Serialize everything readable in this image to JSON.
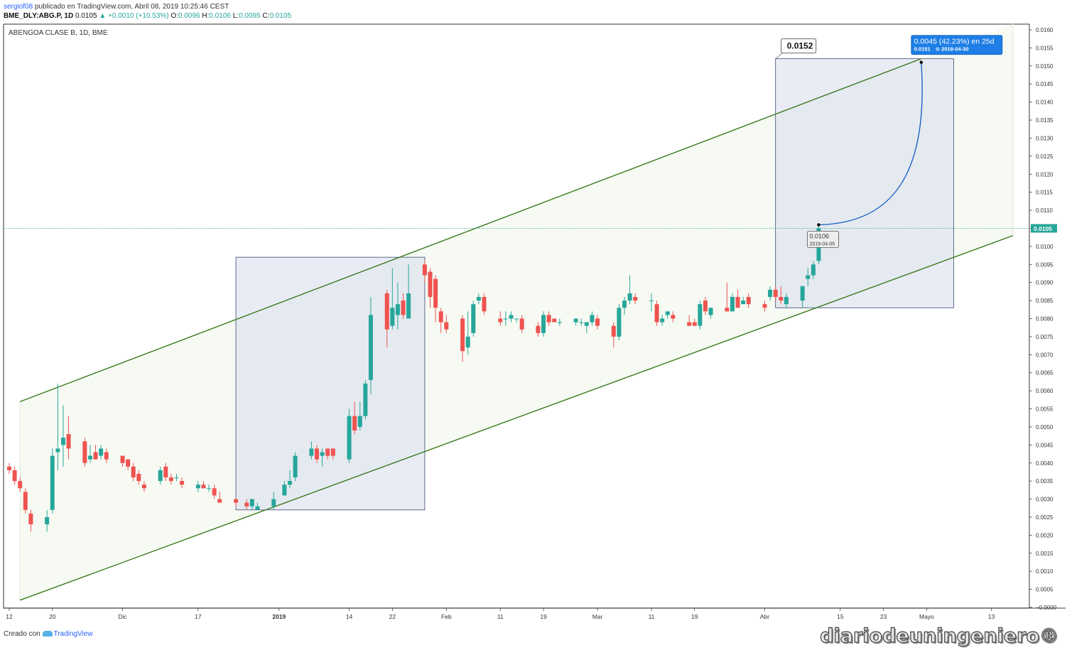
{
  "header": {
    "user": "sergiof08",
    "published": "publicado en TradingView.com, Abril 08, 2019 10:25:46 CEST",
    "symbol": "BME_DLY:ABG.P, 1D",
    "last": "0.0105",
    "change": "▲ +0.0010 (+10.53%)",
    "o_label": "O:",
    "o_value": "0.0096",
    "h_label": "H:",
    "h_value": "0.0106",
    "l_label": "L:",
    "l_value": "0.0095",
    "c_label": "C:",
    "c_value": "0.0105"
  },
  "footer": {
    "created_with": "Creado con",
    "brand": "TradingView",
    "watermark": "diariodeuningeniero®"
  },
  "chart_data": {
    "type": "candlestick",
    "title": "ABENGOA CLASE B, 1D, BME",
    "ylim": [
      0,
      0.016
    ],
    "y_ticks": [
      "0.0160",
      "0.0155",
      "0.0150",
      "0.0145",
      "0.0140",
      "0.0135",
      "0.0130",
      "0.0125",
      "0.0120",
      "0.0115",
      "0.0110",
      "0.0105",
      "0.0100",
      "0.0095",
      "0.0090",
      "0.0085",
      "0.0080",
      "0.0075",
      "0.0070",
      "0.0065",
      "0.0060",
      "0.0055",
      "0.0050",
      "0.0045",
      "0.0040",
      "0.0035",
      "0.0030",
      "0.0025",
      "0.0020",
      "0.0015",
      "0.0010",
      "0.0005",
      "−0.0000"
    ],
    "x_ticks": [
      "12",
      "20",
      "Dic",
      "17",
      "2019",
      "14",
      "22",
      "Feb",
      "11",
      "19",
      "Mar",
      "11",
      "19",
      "Abr",
      "15",
      "23",
      "Mayo",
      "13"
    ],
    "x_range": [
      "2018-11-12",
      "2019-05-17"
    ],
    "last_price": 0.0105,
    "last_price_label": "0.0105",
    "candles": [
      {
        "d": "2018-11-12",
        "o": 0.0039,
        "h": 0.004,
        "l": 0.0037,
        "c": 0.0038
      },
      {
        "d": "2018-11-13",
        "o": 0.0038,
        "h": 0.0039,
        "l": 0.0034,
        "c": 0.0035
      },
      {
        "d": "2018-11-14",
        "o": 0.0035,
        "h": 0.0036,
        "l": 0.0032,
        "c": 0.0033
      },
      {
        "d": "2018-11-15",
        "o": 0.0032,
        "h": 0.0033,
        "l": 0.0026,
        "c": 0.0027
      },
      {
        "d": "2018-11-16",
        "o": 0.0026,
        "h": 0.0027,
        "l": 0.0021,
        "c": 0.0023
      },
      {
        "d": "2018-11-19",
        "o": 0.0023,
        "h": 0.0027,
        "l": 0.0021,
        "c": 0.0025
      },
      {
        "d": "2018-11-20",
        "o": 0.0027,
        "h": 0.0044,
        "l": 0.0026,
        "c": 0.0042
      },
      {
        "d": "2018-11-21",
        "o": 0.0043,
        "h": 0.0062,
        "l": 0.0038,
        "c": 0.0044
      },
      {
        "d": "2018-11-22",
        "o": 0.0045,
        "h": 0.0056,
        "l": 0.0039,
        "c": 0.0047
      },
      {
        "d": "2018-11-23",
        "o": 0.0048,
        "h": 0.0053,
        "l": 0.0041,
        "c": 0.0044
      },
      {
        "d": "2018-11-26",
        "o": 0.0046,
        "h": 0.0047,
        "l": 0.0039,
        "c": 0.004
      },
      {
        "d": "2018-11-27",
        "o": 0.0041,
        "h": 0.0045,
        "l": 0.004,
        "c": 0.0042
      },
      {
        "d": "2018-11-28",
        "o": 0.0043,
        "h": 0.0045,
        "l": 0.0041,
        "c": 0.0041
      },
      {
        "d": "2018-11-29",
        "o": 0.0042,
        "h": 0.0045,
        "l": 0.0041,
        "c": 0.0044
      },
      {
        "d": "2018-11-30",
        "o": 0.0043,
        "h": 0.0044,
        "l": 0.004,
        "c": 0.0041
      },
      {
        "d": "2018-12-03",
        "o": 0.0042,
        "h": 0.0042,
        "l": 0.0039,
        "c": 0.004
      },
      {
        "d": "2018-12-04",
        "o": 0.0041,
        "h": 0.0041,
        "l": 0.0038,
        "c": 0.0039
      },
      {
        "d": "2018-12-05",
        "o": 0.0039,
        "h": 0.004,
        "l": 0.0035,
        "c": 0.0036
      },
      {
        "d": "2018-12-06",
        "o": 0.0037,
        "h": 0.0038,
        "l": 0.0034,
        "c": 0.0035
      },
      {
        "d": "2018-12-07",
        "o": 0.0034,
        "h": 0.0035,
        "l": 0.0032,
        "c": 0.0033
      },
      {
        "d": "2018-12-10",
        "o": 0.0035,
        "h": 0.0039,
        "l": 0.0034,
        "c": 0.0038
      },
      {
        "d": "2018-12-11",
        "o": 0.0039,
        "h": 0.004,
        "l": 0.0035,
        "c": 0.0036
      },
      {
        "d": "2018-12-12",
        "o": 0.0036,
        "h": 0.0037,
        "l": 0.0034,
        "c": 0.0035
      },
      {
        "d": "2018-12-13",
        "o": 0.0036,
        "h": 0.0037,
        "l": 0.0035,
        "c": 0.0036
      },
      {
        "d": "2018-12-14",
        "o": 0.0035,
        "h": 0.0036,
        "l": 0.0033,
        "c": 0.0034
      },
      {
        "d": "2018-12-17",
        "o": 0.0033,
        "h": 0.0035,
        "l": 0.0032,
        "c": 0.0034
      },
      {
        "d": "2018-12-18",
        "o": 0.0034,
        "h": 0.0035,
        "l": 0.0033,
        "c": 0.0033
      },
      {
        "d": "2018-12-19",
        "o": 0.0033,
        "h": 0.0034,
        "l": 0.0032,
        "c": 0.0033
      },
      {
        "d": "2018-12-20",
        "o": 0.0033,
        "h": 0.0034,
        "l": 0.003,
        "c": 0.0031
      },
      {
        "d": "2018-12-21",
        "o": 0.003,
        "h": 0.0032,
        "l": 0.0029,
        "c": 0.0029
      },
      {
        "d": "2018-12-24",
        "o": 0.003,
        "h": 0.003,
        "l": 0.0028,
        "c": 0.0029
      },
      {
        "d": "2018-12-26",
        "o": 0.0029,
        "h": 0.003,
        "l": 0.0027,
        "c": 0.0028
      },
      {
        "d": "2018-12-27",
        "o": 0.0028,
        "h": 0.003,
        "l": 0.0027,
        "c": 0.003
      },
      {
        "d": "2018-12-28",
        "o": 0.0027,
        "h": 0.0029,
        "l": 0.0027,
        "c": 0.0028
      },
      {
        "d": "2018-12-31",
        "o": 0.0028,
        "h": 0.0032,
        "l": 0.0027,
        "c": 0.003
      },
      {
        "d": "2019-01-02",
        "o": 0.0031,
        "h": 0.0035,
        "l": 0.0031,
        "c": 0.0034
      },
      {
        "d": "2019-01-03",
        "o": 0.0034,
        "h": 0.0038,
        "l": 0.0033,
        "c": 0.0035
      },
      {
        "d": "2019-01-04",
        "o": 0.0036,
        "h": 0.0043,
        "l": 0.0035,
        "c": 0.0042
      },
      {
        "d": "2019-01-07",
        "o": 0.0042,
        "h": 0.0046,
        "l": 0.0041,
        "c": 0.0044
      },
      {
        "d": "2019-01-08",
        "o": 0.0044,
        "h": 0.0045,
        "l": 0.004,
        "c": 0.0041
      },
      {
        "d": "2019-01-09",
        "o": 0.0042,
        "h": 0.0044,
        "l": 0.0039,
        "c": 0.0043
      },
      {
        "d": "2019-01-10",
        "o": 0.0044,
        "h": 0.0044,
        "l": 0.0041,
        "c": 0.0042
      },
      {
        "d": "2019-01-11",
        "o": 0.0044,
        "h": 0.0044,
        "l": 0.0041,
        "c": 0.0042
      },
      {
        "d": "2019-01-14",
        "o": 0.0041,
        "h": 0.0055,
        "l": 0.004,
        "c": 0.0053
      },
      {
        "d": "2019-01-15",
        "o": 0.0053,
        "h": 0.0057,
        "l": 0.0048,
        "c": 0.0049
      },
      {
        "d": "2019-01-16",
        "o": 0.005,
        "h": 0.0057,
        "l": 0.0049,
        "c": 0.0053
      },
      {
        "d": "2019-01-17",
        "o": 0.0053,
        "h": 0.0063,
        "l": 0.0052,
        "c": 0.0062
      },
      {
        "d": "2019-01-18",
        "o": 0.0063,
        "h": 0.0086,
        "l": 0.0059,
        "c": 0.0081
      },
      {
        "d": "2019-01-21",
        "o": 0.0087,
        "h": 0.0088,
        "l": 0.0072,
        "c": 0.0077
      },
      {
        "d": "2019-01-22",
        "o": 0.0078,
        "h": 0.0094,
        "l": 0.0077,
        "c": 0.0083
      },
      {
        "d": "2019-01-23",
        "o": 0.0081,
        "h": 0.009,
        "l": 0.0077,
        "c": 0.0084
      },
      {
        "d": "2019-01-24",
        "o": 0.0085,
        "h": 0.0087,
        "l": 0.008,
        "c": 0.0081
      },
      {
        "d": "2019-01-25",
        "o": 0.008,
        "h": 0.0095,
        "l": 0.008,
        "c": 0.0087
      },
      {
        "d": "2019-01-28",
        "o": 0.0095,
        "h": 0.0096,
        "l": 0.009,
        "c": 0.0092
      },
      {
        "d": "2019-01-29",
        "o": 0.0093,
        "h": 0.0094,
        "l": 0.0083,
        "c": 0.0086
      },
      {
        "d": "2019-01-30",
        "o": 0.0091,
        "h": 0.0092,
        "l": 0.0079,
        "c": 0.0083
      },
      {
        "d": "2019-01-31",
        "o": 0.0082,
        "h": 0.0083,
        "l": 0.0076,
        "c": 0.0079
      },
      {
        "d": "2019-02-01",
        "o": 0.0079,
        "h": 0.0081,
        "l": 0.0076,
        "c": 0.0077
      },
      {
        "d": "2019-02-04",
        "o": 0.008,
        "h": 0.0081,
        "l": 0.0068,
        "c": 0.0071
      },
      {
        "d": "2019-02-05",
        "o": 0.0072,
        "h": 0.0082,
        "l": 0.007,
        "c": 0.0075
      },
      {
        "d": "2019-02-06",
        "o": 0.0076,
        "h": 0.0085,
        "l": 0.0075,
        "c": 0.0084
      },
      {
        "d": "2019-02-07",
        "o": 0.0085,
        "h": 0.0087,
        "l": 0.0084,
        "c": 0.0086
      },
      {
        "d": "2019-02-08",
        "o": 0.0086,
        "h": 0.0087,
        "l": 0.0081,
        "c": 0.0082
      },
      {
        "d": "2019-02-11",
        "o": 0.008,
        "h": 0.0082,
        "l": 0.0078,
        "c": 0.0079
      },
      {
        "d": "2019-02-12",
        "o": 0.008,
        "h": 0.0082,
        "l": 0.0078,
        "c": 0.008
      },
      {
        "d": "2019-02-13",
        "o": 0.008,
        "h": 0.0082,
        "l": 0.0079,
        "c": 0.0081
      },
      {
        "d": "2019-02-14",
        "o": 0.008,
        "h": 0.008,
        "l": 0.0079,
        "c": 0.008
      },
      {
        "d": "2019-02-15",
        "o": 0.008,
        "h": 0.0081,
        "l": 0.0076,
        "c": 0.0077
      },
      {
        "d": "2019-02-18",
        "o": 0.0078,
        "h": 0.0079,
        "l": 0.0075,
        "c": 0.0076
      },
      {
        "d": "2019-02-19",
        "o": 0.0076,
        "h": 0.0082,
        "l": 0.0075,
        "c": 0.0081
      },
      {
        "d": "2019-02-20",
        "o": 0.0081,
        "h": 0.0082,
        "l": 0.0078,
        "c": 0.0079
      },
      {
        "d": "2019-02-21",
        "o": 0.008,
        "h": 0.008,
        "l": 0.0079,
        "c": 0.0079
      },
      {
        "d": "2019-02-22",
        "o": 0.0079,
        "h": 0.008,
        "l": 0.0078,
        "c": 0.0079
      },
      {
        "d": "2019-02-25",
        "o": 0.0079,
        "h": 0.008,
        "l": 0.0078,
        "c": 0.008
      },
      {
        "d": "2019-02-26",
        "o": 0.0079,
        "h": 0.008,
        "l": 0.0078,
        "c": 0.0079
      },
      {
        "d": "2019-02-27",
        "o": 0.0078,
        "h": 0.0079,
        "l": 0.0076,
        "c": 0.0079
      },
      {
        "d": "2019-02-28",
        "o": 0.0079,
        "h": 0.0082,
        "l": 0.0078,
        "c": 0.0081
      },
      {
        "d": "2019-03-01",
        "o": 0.008,
        "h": 0.0081,
        "l": 0.0077,
        "c": 0.0078
      },
      {
        "d": "2019-03-04",
        "o": 0.0078,
        "h": 0.0079,
        "l": 0.0072,
        "c": 0.0075
      },
      {
        "d": "2019-03-05",
        "o": 0.0075,
        "h": 0.0084,
        "l": 0.0074,
        "c": 0.0083
      },
      {
        "d": "2019-03-06",
        "o": 0.0083,
        "h": 0.0086,
        "l": 0.0081,
        "c": 0.0085
      },
      {
        "d": "2019-03-07",
        "o": 0.0085,
        "h": 0.0092,
        "l": 0.0084,
        "c": 0.0087
      },
      {
        "d": "2019-03-08",
        "o": 0.0086,
        "h": 0.0087,
        "l": 0.0084,
        "c": 0.0085
      },
      {
        "d": "2019-03-11",
        "o": 0.0085,
        "h": 0.0087,
        "l": 0.0082,
        "c": 0.0085
      },
      {
        "d": "2019-03-12",
        "o": 0.0084,
        "h": 0.0085,
        "l": 0.0078,
        "c": 0.0079
      },
      {
        "d": "2019-03-13",
        "o": 0.0079,
        "h": 0.0081,
        "l": 0.0078,
        "c": 0.008
      },
      {
        "d": "2019-03-14",
        "o": 0.0081,
        "h": 0.0082,
        "l": 0.008,
        "c": 0.0082
      },
      {
        "d": "2019-03-15",
        "o": 0.0081,
        "h": 0.0082,
        "l": 0.0079,
        "c": 0.008
      },
      {
        "d": "2019-03-18",
        "o": 0.0079,
        "h": 0.0081,
        "l": 0.0078,
        "c": 0.0078
      },
      {
        "d": "2019-03-19",
        "o": 0.0079,
        "h": 0.008,
        "l": 0.0078,
        "c": 0.0078
      },
      {
        "d": "2019-03-20",
        "o": 0.0078,
        "h": 0.0085,
        "l": 0.0077,
        "c": 0.0084
      },
      {
        "d": "2019-03-21",
        "o": 0.0085,
        "h": 0.0086,
        "l": 0.0081,
        "c": 0.0082
      },
      {
        "d": "2019-03-22",
        "o": 0.0081,
        "h": 0.0083,
        "l": 0.008,
        "c": 0.0083
      },
      {
        "d": "2019-03-25",
        "o": 0.0083,
        "h": 0.009,
        "l": 0.0082,
        "c": 0.0082
      },
      {
        "d": "2019-03-26",
        "o": 0.0082,
        "h": 0.0087,
        "l": 0.0082,
        "c": 0.0086
      },
      {
        "d": "2019-03-27",
        "o": 0.0086,
        "h": 0.0088,
        "l": 0.0083,
        "c": 0.0083
      },
      {
        "d": "2019-03-28",
        "o": 0.0084,
        "h": 0.0086,
        "l": 0.0084,
        "c": 0.0085
      },
      {
        "d": "2019-03-29",
        "o": 0.0086,
        "h": 0.0087,
        "l": 0.0083,
        "c": 0.0084
      },
      {
        "d": "2019-04-01",
        "o": 0.0084,
        "h": 0.0085,
        "l": 0.0082,
        "c": 0.0083
      },
      {
        "d": "2019-04-02",
        "o": 0.0086,
        "h": 0.0089,
        "l": 0.0085,
        "c": 0.0088
      },
      {
        "d": "2019-04-03",
        "o": 0.0088,
        "h": 0.0089,
        "l": 0.0085,
        "c": 0.0086
      },
      {
        "d": "2019-04-04",
        "o": 0.0086,
        "h": 0.0089,
        "l": 0.0084,
        "c": 0.0085
      },
      {
        "d": "2019-04-05",
        "o": 0.0084,
        "h": 0.0087,
        "l": 0.0083,
        "c": 0.0086
      },
      {
        "d": "2019-04-08",
        "o": 0.0085,
        "h": 0.0089,
        "l": 0.0083,
        "c": 0.0089
      },
      {
        "d": "2019-04-09",
        "o": 0.0091,
        "h": 0.0094,
        "l": 0.0089,
        "c": 0.0092
      },
      {
        "d": "2019-04-10",
        "o": 0.0092,
        "h": 0.0096,
        "l": 0.0091,
        "c": 0.0095
      },
      {
        "d": "2019-04-11",
        "o": 0.0096,
        "h": 0.0106,
        "l": 0.0095,
        "c": 0.0105
      }
    ],
    "channel": {
      "upper": [
        {
          "d": "2018-11-14",
          "v": 0.0057
        },
        {
          "d": "2019-04-30",
          "v": 0.0152
        }
      ],
      "lower": [
        {
          "d": "2018-11-14",
          "v": 0.0002
        },
        {
          "d": "2019-05-17",
          "v": 0.0103
        }
      ]
    },
    "range_boxes": [
      {
        "d1": "2018-12-24",
        "d2": "2019-01-28",
        "v1": 0.0027,
        "v2": 0.0097
      },
      {
        "d1": "2019-04-03",
        "d2": "2019-05-06",
        "v1": 0.0083,
        "v2": 0.0152
      }
    ],
    "projection": {
      "start": {
        "d": "2019-04-11",
        "v": 0.0106,
        "label": "0.0106",
        "date": "2019-04-05"
      },
      "end": {
        "d": "2019-04-30",
        "v": 0.0151,
        "label1": "0.0045 (42.23%) en 25d",
        "label2": "0.0151",
        "date": "2019-04-30"
      }
    },
    "price_callout": {
      "d": "2019-04-03",
      "v": 0.0152,
      "label": "0.0152"
    }
  }
}
